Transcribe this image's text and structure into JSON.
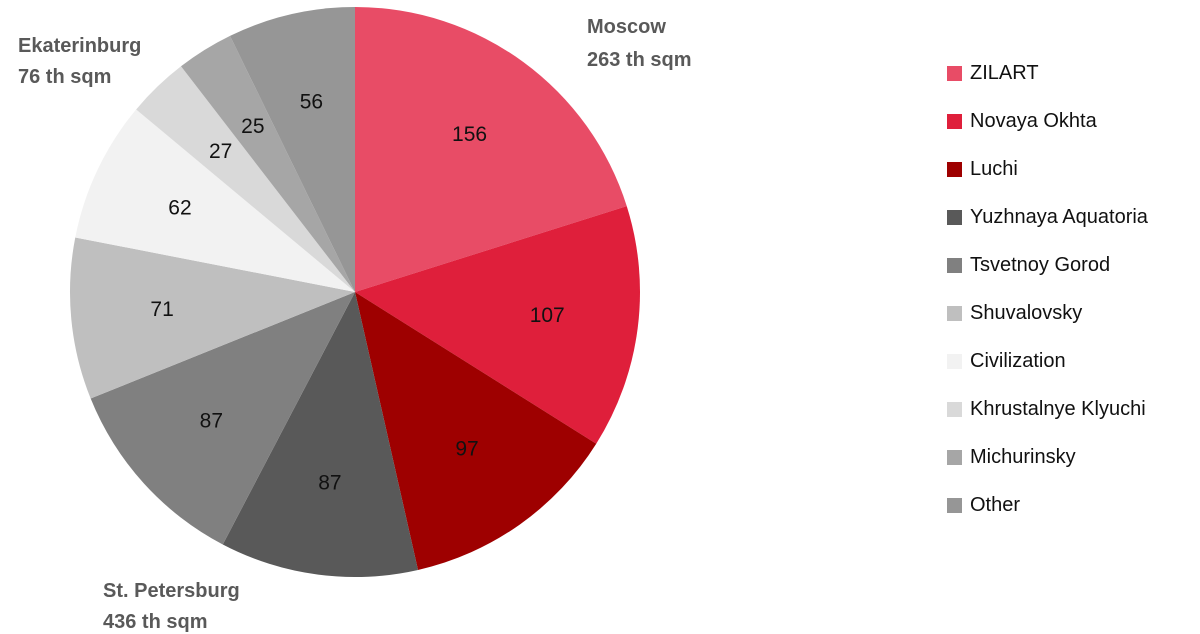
{
  "chart_data": {
    "type": "pie",
    "start_angle_deg": 0,
    "direction": "clockwise",
    "slices": [
      {
        "name": "ZILART",
        "value": 156,
        "color": "#E84C66"
      },
      {
        "name": "Novaya Okhta",
        "value": 107,
        "color": "#DF1F3B"
      },
      {
        "name": "Luchi",
        "value": 97,
        "color": "#9E0000"
      },
      {
        "name": "Yuzhnaya Aquatoria",
        "value": 87,
        "color": "#595959"
      },
      {
        "name": "Tsvetnoy Gorod",
        "value": 87,
        "color": "#808080"
      },
      {
        "name": "Shuvalovsky",
        "value": 71,
        "color": "#BFBFBF"
      },
      {
        "name": "Civilization",
        "value": 62,
        "color": "#F2F2F2"
      },
      {
        "name": "Khrustalnye Klyuchi",
        "value": 27,
        "color": "#D9D9D9"
      },
      {
        "name": "Michurinsky",
        "value": 25,
        "color": "#A6A6A6"
      },
      {
        "name": "Other",
        "value": 56,
        "color": "#969696"
      }
    ],
    "groups": [
      {
        "line1": "Moscow",
        "line2": "263 th sqm"
      },
      {
        "line1": "St. Petersburg",
        "line2": "436 th sqm"
      },
      {
        "line1": "Ekaterinburg",
        "line2": "76 th sqm"
      }
    ],
    "legend_position": "right"
  }
}
